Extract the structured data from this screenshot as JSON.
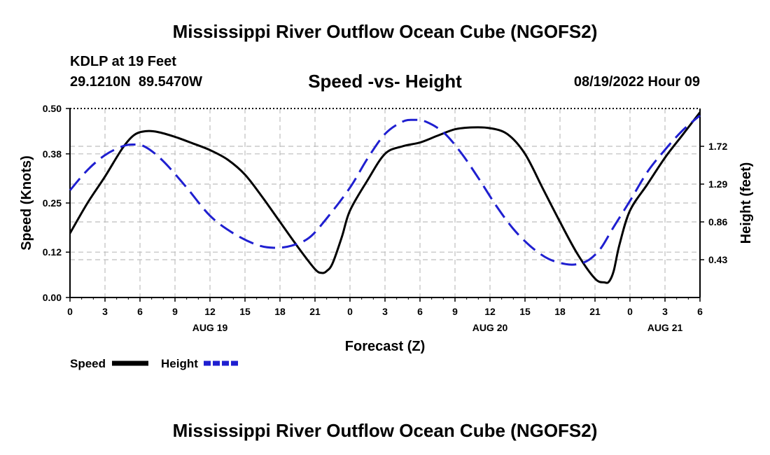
{
  "page_title": "Mississippi River Outflow Ocean Cube (NGOFS2)",
  "footer_title": "Mississippi River Outflow Ocean Cube (NGOFS2)",
  "station": {
    "name": "KDLP at 19 Feet",
    "coords": "29.1210N  89.5470W",
    "datetime": "08/19/2022 Hour 09"
  },
  "colors": {
    "speed": "#000000",
    "height": "#1f1fd0",
    "grid": "#bdbdbd"
  },
  "chart_data": {
    "type": "line",
    "title": "Speed -vs- Height",
    "xlabel": "Forecast (Z)",
    "ylabel": "Speed (Knots)",
    "ylabel_right": "Height (feet)",
    "xlim": [
      0,
      54
    ],
    "ylim": [
      0.0,
      0.5
    ],
    "ylim_right": [
      0.0,
      2.15
    ],
    "x_ticks": [
      0,
      3,
      6,
      9,
      12,
      15,
      18,
      21,
      24,
      27,
      30,
      33,
      36,
      39,
      42,
      45,
      48,
      51,
      54
    ],
    "x_tick_labels": [
      "0",
      "3",
      "6",
      "9",
      "12",
      "15",
      "18",
      "21",
      "0",
      "3",
      "6",
      "9",
      "12",
      "15",
      "18",
      "21",
      "0",
      "3",
      "6"
    ],
    "day_labels": [
      {
        "x": 12,
        "label": "AUG 19"
      },
      {
        "x": 36,
        "label": "AUG 20"
      },
      {
        "x": 51,
        "label": "AUG 21"
      }
    ],
    "y_ticks": [
      0.0,
      0.12,
      0.25,
      0.38,
      0.5
    ],
    "y_tick_labels": [
      "0.00",
      "0.12",
      "0.25",
      "0.38",
      "0.50"
    ],
    "y_ticks_right": [
      0.43,
      0.86,
      1.29,
      1.72
    ],
    "y_tick_labels_right": [
      "0.43",
      "0.86",
      "1.29",
      "1.72"
    ],
    "grid": true,
    "legend": [
      {
        "name": "Speed",
        "style": "solid"
      },
      {
        "name": "Height",
        "style": "dashed"
      }
    ],
    "series": [
      {
        "name": "Speed",
        "axis": "left",
        "style": "solid",
        "x": [
          0,
          1.5,
          3,
          4.5,
          5.5,
          6.5,
          7.5,
          9,
          10.5,
          12,
          13.5,
          15,
          16.5,
          18,
          19.5,
          21,
          21.6,
          22,
          22.5,
          23.3,
          24,
          25.5,
          27,
          28.5,
          30,
          31.5,
          33,
          34.5,
          36,
          37.5,
          39,
          40.5,
          42,
          43.5,
          45,
          45.8,
          46.2,
          46.6,
          47.1,
          48,
          49.5,
          51,
          52.5,
          54
        ],
        "y": [
          0.17,
          0.25,
          0.32,
          0.395,
          0.43,
          0.44,
          0.438,
          0.425,
          0.408,
          0.39,
          0.365,
          0.325,
          0.265,
          0.2,
          0.135,
          0.075,
          0.065,
          0.07,
          0.09,
          0.16,
          0.23,
          0.31,
          0.38,
          0.4,
          0.41,
          0.428,
          0.445,
          0.45,
          0.448,
          0.432,
          0.38,
          0.29,
          0.2,
          0.115,
          0.05,
          0.04,
          0.042,
          0.07,
          0.14,
          0.23,
          0.3,
          0.37,
          0.43,
          0.49
        ]
      },
      {
        "name": "Height",
        "axis": "right",
        "style": "dashed",
        "x": [
          0,
          1.5,
          3,
          4.5,
          5.5,
          6.5,
          8,
          10,
          12,
          14,
          16,
          17.5,
          19,
          20.5,
          22,
          24,
          25.5,
          27,
          28.5,
          29.5,
          30.5,
          32,
          33.5,
          35,
          36.5,
          38,
          39.5,
          41,
          42.5,
          43.5,
          44.5,
          45.5,
          46.5,
          48,
          49.5,
          51,
          52.5,
          54
        ],
        "y": [
          1.22,
          1.45,
          1.62,
          1.72,
          1.74,
          1.71,
          1.55,
          1.25,
          0.93,
          0.73,
          0.6,
          0.565,
          0.59,
          0.68,
          0.9,
          1.25,
          1.58,
          1.86,
          2.0,
          2.02,
          2.0,
          1.88,
          1.65,
          1.36,
          1.05,
          0.78,
          0.58,
          0.44,
          0.38,
          0.38,
          0.43,
          0.56,
          0.78,
          1.1,
          1.43,
          1.68,
          1.9,
          2.07
        ]
      }
    ]
  }
}
